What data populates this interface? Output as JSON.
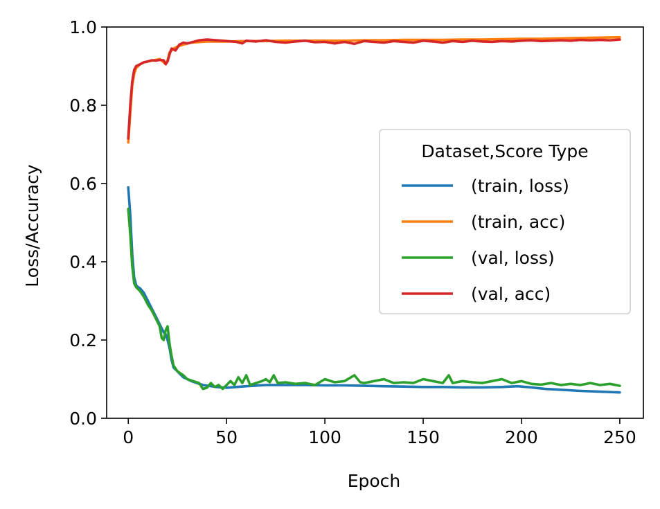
{
  "chart_data": {
    "type": "line",
    "title": "",
    "xlabel": "Epoch",
    "ylabel": "Loss/Accuracy",
    "xlim": [
      -11,
      262
    ],
    "ylim": [
      0.0,
      1.0
    ],
    "xticks": [
      0,
      50,
      100,
      150,
      200,
      250
    ],
    "yticks": [
      0.0,
      0.2,
      0.4,
      0.6,
      0.8,
      1.0
    ],
    "xtick_labels": [
      "0",
      "50",
      "100",
      "150",
      "200",
      "250"
    ],
    "ytick_labels": [
      "0.0",
      "0.2",
      "0.4",
      "0.6",
      "0.8",
      "1.0"
    ],
    "grid": false,
    "legend": {
      "title": "Dataset,Score Type",
      "placement": "center-right"
    },
    "series": [
      {
        "name": "(train, loss)",
        "color": "#1f77b4",
        "points": [
          [
            0,
            0.59
          ],
          [
            1,
            0.52
          ],
          [
            2,
            0.42
          ],
          [
            3,
            0.36
          ],
          [
            4,
            0.34
          ],
          [
            5,
            0.335
          ],
          [
            6,
            0.332
          ],
          [
            8,
            0.32
          ],
          [
            10,
            0.3
          ],
          [
            12,
            0.28
          ],
          [
            14,
            0.26
          ],
          [
            16,
            0.24
          ],
          [
            18,
            0.22
          ],
          [
            19,
            0.215
          ],
          [
            20,
            0.2
          ],
          [
            21,
            0.18
          ],
          [
            22,
            0.15
          ],
          [
            23,
            0.13
          ],
          [
            25,
            0.12
          ],
          [
            28,
            0.105
          ],
          [
            32,
            0.095
          ],
          [
            38,
            0.085
          ],
          [
            45,
            0.08
          ],
          [
            50,
            0.078
          ],
          [
            60,
            0.082
          ],
          [
            70,
            0.085
          ],
          [
            80,
            0.085
          ],
          [
            90,
            0.085
          ],
          [
            100,
            0.084
          ],
          [
            110,
            0.084
          ],
          [
            120,
            0.083
          ],
          [
            130,
            0.082
          ],
          [
            140,
            0.081
          ],
          [
            150,
            0.08
          ],
          [
            160,
            0.08
          ],
          [
            170,
            0.079
          ],
          [
            180,
            0.079
          ],
          [
            190,
            0.08
          ],
          [
            198,
            0.082
          ],
          [
            205,
            0.079
          ],
          [
            212,
            0.075
          ],
          [
            220,
            0.073
          ],
          [
            230,
            0.07
          ],
          [
            240,
            0.068
          ],
          [
            250,
            0.066
          ]
        ]
      },
      {
        "name": "(train, acc)",
        "color": "#ff7f0e",
        "points": [
          [
            0,
            0.705
          ],
          [
            1,
            0.78
          ],
          [
            2,
            0.85
          ],
          [
            3,
            0.88
          ],
          [
            4,
            0.895
          ],
          [
            6,
            0.905
          ],
          [
            8,
            0.91
          ],
          [
            10,
            0.912
          ],
          [
            12,
            0.914
          ],
          [
            14,
            0.916
          ],
          [
            16,
            0.918
          ],
          [
            18,
            0.91
          ],
          [
            19,
            0.905
          ],
          [
            20,
            0.915
          ],
          [
            21,
            0.935
          ],
          [
            23,
            0.945
          ],
          [
            25,
            0.95
          ],
          [
            28,
            0.955
          ],
          [
            32,
            0.96
          ],
          [
            40,
            0.963
          ],
          [
            50,
            0.963
          ],
          [
            60,
            0.964
          ],
          [
            70,
            0.964
          ],
          [
            80,
            0.965
          ],
          [
            90,
            0.965
          ],
          [
            100,
            0.965
          ],
          [
            110,
            0.965
          ],
          [
            120,
            0.966
          ],
          [
            130,
            0.966
          ],
          [
            140,
            0.967
          ],
          [
            150,
            0.967
          ],
          [
            160,
            0.967
          ],
          [
            170,
            0.968
          ],
          [
            180,
            0.968
          ],
          [
            190,
            0.969
          ],
          [
            200,
            0.97
          ],
          [
            210,
            0.97
          ],
          [
            220,
            0.971
          ],
          [
            230,
            0.972
          ],
          [
            240,
            0.973
          ],
          [
            250,
            0.974
          ]
        ]
      },
      {
        "name": "(val, loss)",
        "color": "#2ca02c",
        "points": [
          [
            0,
            0.535
          ],
          [
            1,
            0.47
          ],
          [
            2,
            0.39
          ],
          [
            3,
            0.345
          ],
          [
            4,
            0.335
          ],
          [
            5,
            0.33
          ],
          [
            6,
            0.325
          ],
          [
            8,
            0.31
          ],
          [
            10,
            0.29
          ],
          [
            12,
            0.275
          ],
          [
            14,
            0.255
          ],
          [
            15,
            0.245
          ],
          [
            16,
            0.235
          ],
          [
            17,
            0.205
          ],
          [
            18,
            0.2
          ],
          [
            19,
            0.225
          ],
          [
            20,
            0.235
          ],
          [
            21,
            0.19
          ],
          [
            22,
            0.16
          ],
          [
            23,
            0.135
          ],
          [
            25,
            0.12
          ],
          [
            28,
            0.11
          ],
          [
            30,
            0.1
          ],
          [
            33,
            0.095
          ],
          [
            36,
            0.09
          ],
          [
            38,
            0.075
          ],
          [
            40,
            0.078
          ],
          [
            42,
            0.09
          ],
          [
            44,
            0.08
          ],
          [
            46,
            0.085
          ],
          [
            48,
            0.075
          ],
          [
            50,
            0.085
          ],
          [
            52,
            0.095
          ],
          [
            54,
            0.085
          ],
          [
            56,
            0.105
          ],
          [
            58,
            0.09
          ],
          [
            60,
            0.11
          ],
          [
            62,
            0.085
          ],
          [
            65,
            0.09
          ],
          [
            68,
            0.095
          ],
          [
            70,
            0.1
          ],
          [
            72,
            0.092
          ],
          [
            74,
            0.11
          ],
          [
            76,
            0.09
          ],
          [
            80,
            0.092
          ],
          [
            85,
            0.088
          ],
          [
            90,
            0.09
          ],
          [
            95,
            0.085
          ],
          [
            100,
            0.1
          ],
          [
            105,
            0.092
          ],
          [
            110,
            0.095
          ],
          [
            115,
            0.11
          ],
          [
            118,
            0.092
          ],
          [
            120,
            0.09
          ],
          [
            125,
            0.095
          ],
          [
            130,
            0.1
          ],
          [
            135,
            0.09
          ],
          [
            140,
            0.092
          ],
          [
            145,
            0.09
          ],
          [
            150,
            0.1
          ],
          [
            155,
            0.095
          ],
          [
            160,
            0.09
          ],
          [
            163,
            0.11
          ],
          [
            165,
            0.09
          ],
          [
            170,
            0.095
          ],
          [
            175,
            0.092
          ],
          [
            180,
            0.09
          ],
          [
            185,
            0.095
          ],
          [
            190,
            0.1
          ],
          [
            195,
            0.09
          ],
          [
            200,
            0.095
          ],
          [
            205,
            0.088
          ],
          [
            210,
            0.086
          ],
          [
            215,
            0.09
          ],
          [
            220,
            0.085
          ],
          [
            225,
            0.088
          ],
          [
            230,
            0.085
          ],
          [
            235,
            0.09
          ],
          [
            240,
            0.085
          ],
          [
            245,
            0.088
          ],
          [
            250,
            0.083
          ]
        ]
      },
      {
        "name": "(val, acc)",
        "color": "#d62728",
        "points": [
          [
            0,
            0.715
          ],
          [
            1,
            0.8
          ],
          [
            2,
            0.86
          ],
          [
            3,
            0.89
          ],
          [
            4,
            0.9
          ],
          [
            6,
            0.905
          ],
          [
            8,
            0.91
          ],
          [
            10,
            0.912
          ],
          [
            12,
            0.915
          ],
          [
            14,
            0.914
          ],
          [
            16,
            0.916
          ],
          [
            18,
            0.915
          ],
          [
            19,
            0.905
          ],
          [
            20,
            0.912
          ],
          [
            21,
            0.93
          ],
          [
            22,
            0.945
          ],
          [
            24,
            0.94
          ],
          [
            26,
            0.955
          ],
          [
            28,
            0.96
          ],
          [
            30,
            0.958
          ],
          [
            33,
            0.962
          ],
          [
            36,
            0.966
          ],
          [
            40,
            0.968
          ],
          [
            45,
            0.966
          ],
          [
            50,
            0.964
          ],
          [
            55,
            0.962
          ],
          [
            58,
            0.958
          ],
          [
            60,
            0.965
          ],
          [
            65,
            0.963
          ],
          [
            70,
            0.966
          ],
          [
            75,
            0.962
          ],
          [
            80,
            0.96
          ],
          [
            85,
            0.963
          ],
          [
            90,
            0.965
          ],
          [
            95,
            0.961
          ],
          [
            100,
            0.962
          ],
          [
            105,
            0.958
          ],
          [
            110,
            0.962
          ],
          [
            115,
            0.957
          ],
          [
            120,
            0.964
          ],
          [
            125,
            0.962
          ],
          [
            130,
            0.96
          ],
          [
            135,
            0.964
          ],
          [
            140,
            0.962
          ],
          [
            145,
            0.96
          ],
          [
            150,
            0.965
          ],
          [
            155,
            0.963
          ],
          [
            160,
            0.96
          ],
          [
            165,
            0.964
          ],
          [
            170,
            0.962
          ],
          [
            175,
            0.965
          ],
          [
            180,
            0.963
          ],
          [
            185,
            0.962
          ],
          [
            190,
            0.964
          ],
          [
            195,
            0.963
          ],
          [
            200,
            0.965
          ],
          [
            205,
            0.966
          ],
          [
            210,
            0.964
          ],
          [
            215,
            0.965
          ],
          [
            220,
            0.966
          ],
          [
            225,
            0.965
          ],
          [
            230,
            0.967
          ],
          [
            235,
            0.966
          ],
          [
            240,
            0.967
          ],
          [
            245,
            0.966
          ],
          [
            250,
            0.968
          ]
        ]
      }
    ]
  }
}
